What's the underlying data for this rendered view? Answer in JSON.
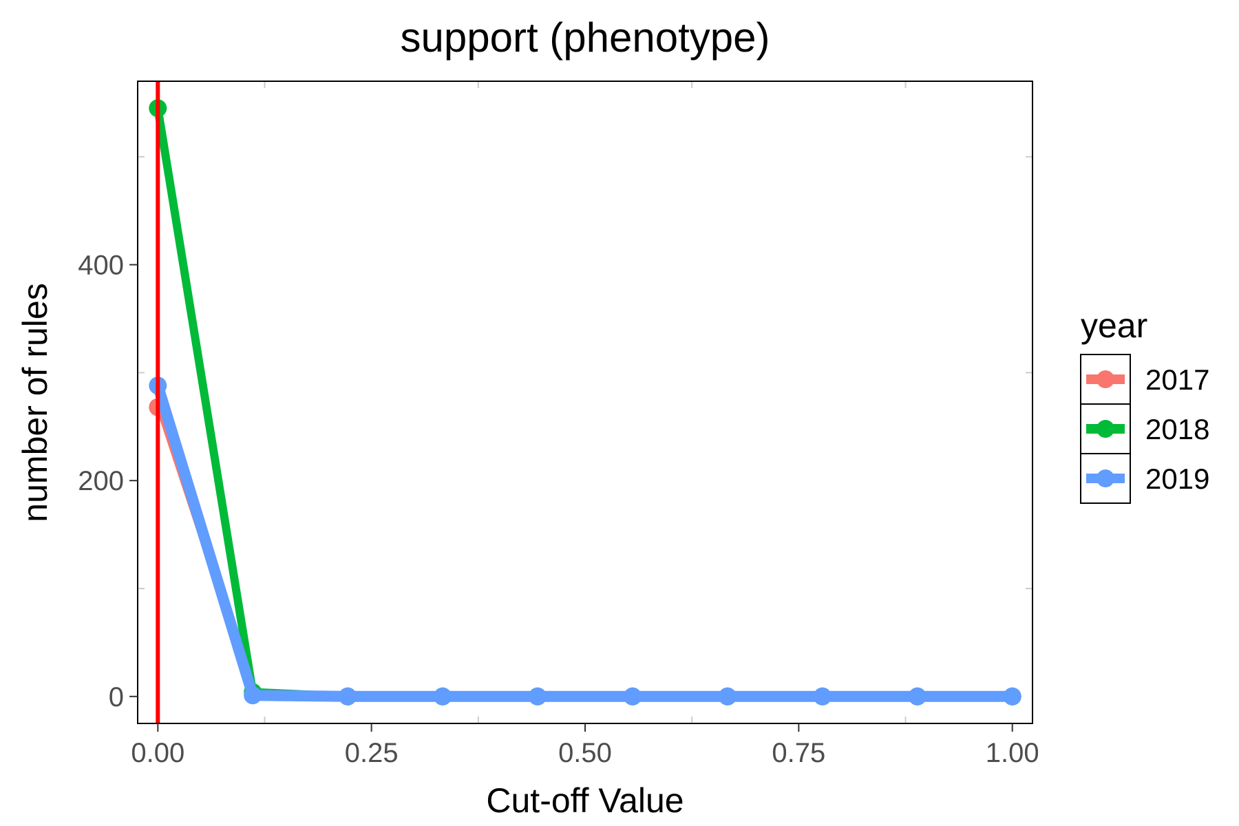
{
  "chart_data": {
    "type": "line",
    "title": "support (phenotype)",
    "xlabel": "Cut-off Value",
    "ylabel": "number of rules",
    "xlim": [
      -0.0236,
      1.0236
    ],
    "ylim": [
      -25,
      570
    ],
    "x_ticks": [
      0.0,
      0.25,
      0.5,
      0.75,
      1.0
    ],
    "x_tick_labels": [
      "0.00",
      "0.25",
      "0.50",
      "0.75",
      "1.00"
    ],
    "y_ticks": [
      0,
      200,
      400
    ],
    "y_tick_labels": [
      "0",
      "200",
      "400"
    ],
    "grid": false,
    "x": [
      0.0,
      0.1111,
      0.2222,
      0.3333,
      0.4444,
      0.5556,
      0.6667,
      0.7778,
      0.8889,
      1.0
    ],
    "series": [
      {
        "name": "2017",
        "color": "#F8766D",
        "values": [
          268,
          2,
          0,
          0,
          0,
          0,
          0,
          0,
          0,
          0
        ]
      },
      {
        "name": "2018",
        "color": "#00BA38",
        "values": [
          545,
          4,
          0,
          0,
          0,
          0,
          0,
          0,
          0,
          0
        ]
      },
      {
        "name": "2019",
        "color": "#619CFF",
        "values": [
          288,
          1,
          0,
          0,
          0,
          0,
          0,
          0,
          0,
          0
        ]
      }
    ],
    "vline": {
      "x": 0.0,
      "color": "#FF0000"
    },
    "legend": {
      "title": "year",
      "position": "right"
    }
  }
}
